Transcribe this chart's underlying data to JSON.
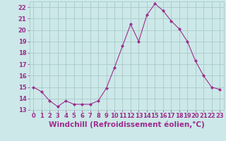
{
  "x": [
    0,
    1,
    2,
    3,
    4,
    5,
    6,
    7,
    8,
    9,
    10,
    11,
    12,
    13,
    14,
    15,
    16,
    17,
    18,
    19,
    20,
    21,
    22,
    23
  ],
  "y": [
    15.0,
    14.6,
    13.8,
    13.3,
    13.8,
    13.5,
    13.5,
    13.5,
    13.8,
    14.9,
    16.7,
    18.6,
    20.5,
    19.0,
    21.3,
    22.3,
    21.7,
    20.8,
    20.1,
    19.0,
    17.3,
    16.0,
    15.0,
    14.8
  ],
  "line_color": "#9b2d8e",
  "marker": "D",
  "marker_size": 2,
  "bg_color": "#cce8e8",
  "grid_color": "#aacaca",
  "xlabel": "Windchill (Refroidissement éolien,°C)",
  "xlabel_color": "#9b2d8e",
  "ylim": [
    13,
    22.5
  ],
  "xlim": [
    -0.5,
    23.5
  ],
  "yticks": [
    13,
    14,
    15,
    16,
    17,
    18,
    19,
    20,
    21,
    22
  ],
  "xticks": [
    0,
    1,
    2,
    3,
    4,
    5,
    6,
    7,
    8,
    9,
    10,
    11,
    12,
    13,
    14,
    15,
    16,
    17,
    18,
    19,
    20,
    21,
    22,
    23
  ],
  "tick_label_color": "#9b2d8e",
  "tick_label_size": 6,
  "xlabel_size": 7.5,
  "xlabel_weight": "bold"
}
